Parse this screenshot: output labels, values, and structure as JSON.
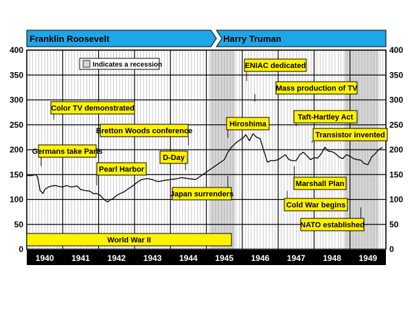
{
  "chart_data": {
    "type": "line",
    "x_range": [
      "1940-01",
      "1949-12"
    ],
    "ylim": [
      0,
      400
    ],
    "y_ticks": [
      "0",
      "50",
      "100",
      "150",
      "200",
      "250",
      "300",
      "350",
      "400"
    ],
    "x_ticks": [
      "1940",
      "1941",
      "1942",
      "1943",
      "1944",
      "1945",
      "1946",
      "1947",
      "1948",
      "1949"
    ],
    "legend": {
      "label": "Indicates a recession",
      "position": "top-left"
    },
    "presidents": [
      {
        "name": "Franklin Roosevelt",
        "start": 1940.0,
        "end": 1945.28,
        "color": "#1ea7e6"
      },
      {
        "name": "Harry Truman",
        "start": 1945.28,
        "end": 1950.0,
        "color": "#1ea7e6"
      }
    ],
    "recessions": [
      {
        "start": 1945.1,
        "end": 1945.8
      },
      {
        "start": 1948.85,
        "end": 1949.8
      }
    ],
    "series": [
      {
        "x": [
          1940.0,
          1940.12,
          1940.25,
          1940.3,
          1940.37,
          1940.45,
          1940.5,
          1940.6,
          1940.7,
          1940.8,
          1940.9,
          1941.0,
          1941.1,
          1941.25,
          1941.4,
          1941.5,
          1941.6,
          1941.75,
          1941.85,
          1941.95,
          1942.05,
          1942.15,
          1942.25,
          1942.32,
          1942.4,
          1942.5,
          1942.6,
          1942.7,
          1942.8,
          1942.9,
          1943.0,
          1943.1,
          1943.2,
          1943.35,
          1943.5,
          1943.6,
          1943.7,
          1943.8,
          1943.9,
          1944.0,
          1944.1,
          1944.2,
          1944.3,
          1944.4,
          1944.5,
          1944.6,
          1944.7,
          1944.8,
          1944.9,
          1945.0,
          1945.1,
          1945.2,
          1945.3,
          1945.4,
          1945.5,
          1945.6,
          1945.7,
          1945.8,
          1945.9,
          1946.0,
          1946.1,
          1946.2,
          1946.3,
          1946.4,
          1946.5,
          1946.6,
          1946.7,
          1946.8,
          1946.9,
          1947.0,
          1947.1,
          1947.2,
          1947.3,
          1947.4,
          1947.5,
          1947.6,
          1947.7,
          1947.8,
          1947.9,
          1948.0,
          1948.1,
          1948.2,
          1948.3,
          1948.4,
          1948.5,
          1948.6,
          1948.7,
          1948.8,
          1948.9,
          1949.0,
          1949.1,
          1949.2,
          1949.3,
          1949.4,
          1949.5,
          1949.6,
          1949.7,
          1949.8,
          1949.9
        ],
        "y": [
          148,
          148,
          150,
          145,
          118,
          112,
          120,
          125,
          127,
          128,
          126,
          125,
          128,
          125,
          127,
          120,
          118,
          117,
          112,
          112,
          108,
          100,
          95,
          99,
          102,
          108,
          112,
          115,
          120,
          125,
          130,
          136,
          140,
          142,
          140,
          137,
          136,
          138,
          139,
          140,
          141,
          142,
          144,
          143,
          142,
          141,
          140,
          145,
          150,
          155,
          160,
          165,
          170,
          175,
          180,
          195,
          205,
          212,
          218,
          222,
          230,
          218,
          232,
          225,
          222,
          198,
          175,
          178,
          178,
          180,
          185,
          190,
          180,
          178,
          178,
          190,
          195,
          188,
          180,
          184,
          183,
          192,
          205,
          197,
          196,
          192,
          185,
          182,
          190,
          187,
          182,
          180,
          179,
          172,
          170,
          185,
          192,
          200,
          205
        ]
      }
    ],
    "annotations": [
      {
        "text": "Color TV demonstrated",
        "year": 1940.75
      },
      {
        "text": "Germans take Paris",
        "year": 1940.4
      },
      {
        "text": "Pearl Harbor",
        "year": 1941.95
      },
      {
        "text": "Bretton Woods conference",
        "year": 1944.5
      },
      {
        "text": "D-Day",
        "year": 1944.42
      },
      {
        "text": "Japan surrenders",
        "year": 1945.6
      },
      {
        "text": "Hiroshima",
        "year": 1945.6
      },
      {
        "text": "ENIAC dedicated",
        "year": 1946.12
      },
      {
        "text": "Mass production of TV",
        "year": 1946.35
      },
      {
        "text": "Taft-Hartley Act",
        "year": 1947.5
      },
      {
        "text": "Transistor invented",
        "year": 1947.95
      },
      {
        "text": "Marshall Plan",
        "year": 1947.45
      },
      {
        "text": "Cold War begins",
        "year": 1947.25
      },
      {
        "text": "NATO established",
        "year": 1949.3
      },
      {
        "text": "World War II",
        "start": 1940.0,
        "end": 1945.7
      }
    ],
    "colors": {
      "label_fill": "#fff200",
      "president_bar": "#1ea7e6",
      "recession": "#d6d6d6",
      "year_bar": "#000000"
    }
  }
}
